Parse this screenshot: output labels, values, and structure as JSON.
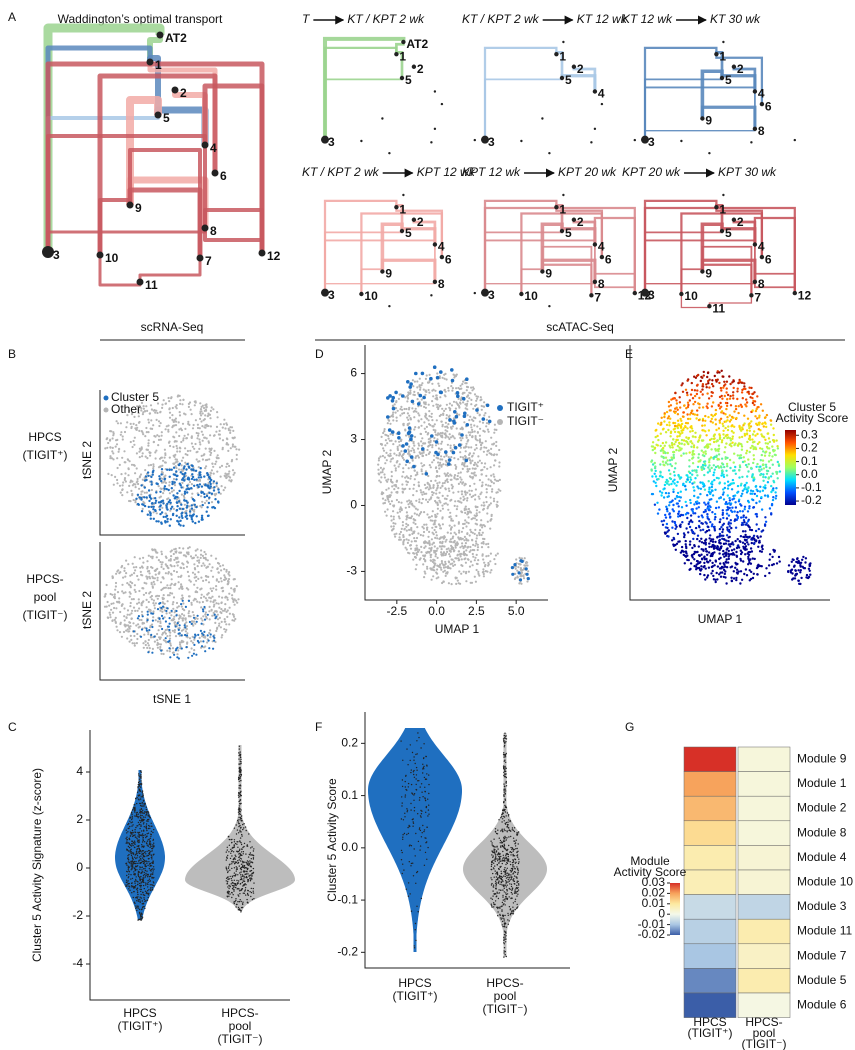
{
  "panels": {
    "sections": [
      "scRNA-Seq",
      "scATAC-Seq"
    ],
    "A": {
      "letter": "A",
      "title": "Waddington’s optimal transport",
      "nodes": [
        "AT2",
        "1",
        "2",
        "5",
        "4",
        "6",
        "9",
        "8",
        "3",
        "10",
        "7",
        "12",
        "11"
      ],
      "transitions": [
        {
          "from": "T",
          "to": "KT / KPT 2 wk",
          "nodes": [
            "AT2",
            "1",
            "2",
            "5",
            "3"
          ]
        },
        {
          "from": "KT / KPT 2 wk",
          "to": "KT 12 wk",
          "nodes": [
            "1",
            "2",
            "5",
            "4",
            "3"
          ]
        },
        {
          "from": "KT 12 wk",
          "to": "KT 30 wk",
          "nodes": [
            "1",
            "2",
            "5",
            "4",
            "6",
            "9",
            "8",
            "3"
          ]
        },
        {
          "from": "KT / KPT 2 wk",
          "to": "KPT 12 wk",
          "nodes": [
            "1",
            "2",
            "5",
            "4",
            "6",
            "9",
            "8",
            "3",
            "10"
          ]
        },
        {
          "from": "KPT 12 wk",
          "to": "KPT 20 wk",
          "nodes": [
            "1",
            "2",
            "5",
            "4",
            "6",
            "9",
            "8",
            "3",
            "10",
            "7",
            "12"
          ]
        },
        {
          "from": "KPT 20 wk",
          "to": "KPT 30 wk",
          "nodes": [
            "1",
            "2",
            "5",
            "4",
            "6",
            "9",
            "8",
            "3",
            "10",
            "11",
            "7",
            "12"
          ]
        }
      ]
    },
    "B": {
      "letter": "B",
      "legend": [
        "Cluster 5",
        "Other"
      ],
      "colors": [
        "#1f6fc0",
        "#b5b5b5"
      ],
      "rows": [
        {
          "label": [
            "HPCS",
            "(TIGIT⁺)"
          ],
          "ylabel": "tSNE 2"
        },
        {
          "label": [
            "HPCS-",
            "pool",
            "(TIGIT⁻)"
          ],
          "ylabel": "tSNE 2"
        }
      ],
      "xlabel": "tSNE 1"
    },
    "C": {
      "letter": "C",
      "ylabel": "Cluster 5 Activity Signature (z-score)",
      "ylim": [
        -5.5,
        5.5
      ],
      "yticks": [
        4,
        2,
        0,
        -2,
        -4
      ],
      "categories": [
        [
          "HPCS",
          "(TIGIT⁺)"
        ],
        [
          "HPCS-",
          "pool",
          "(TIGIT⁻)"
        ]
      ],
      "colors": [
        "#1f6fc0",
        "#bdbdbd"
      ]
    },
    "D": {
      "letter": "D",
      "xlabel": "UMAP 1",
      "ylabel": "UMAP 2",
      "xlim": [
        -4.5,
        7
      ],
      "xticks": [
        -2.5,
        {
          "value": 0,
          "label": "0.0"
        },
        2.5,
        {
          "value": 5,
          "label": "5.0"
        }
      ],
      "ylim": [
        -4.3,
        7.3
      ],
      "yticks": [
        6,
        3,
        0,
        -3
      ],
      "legend": [
        "TIGIT⁺",
        "TIGIT⁻"
      ],
      "colors": [
        "#1f6fc0",
        "#b5b5b5"
      ]
    },
    "E": {
      "letter": "E",
      "xlabel": "UMAP 1",
      "ylabel": "UMAP 2",
      "colorbar": {
        "title": [
          "Cluster 5",
          "Activity Score"
        ],
        "ticks": [
          0.3,
          0.2,
          0.1,
          {
            "value": 0,
            "label": "0.0"
          },
          -0.1,
          -0.2
        ],
        "lim": [
          -0.23,
          0.34
        ],
        "colors": [
          "#00008f",
          "#0050ff",
          "#00dfff",
          "#9fff60",
          "#ffdf00",
          "#ff5000",
          "#8f0000"
        ]
      }
    },
    "F": {
      "letter": "F",
      "ylabel": "Cluster 5 Activity Score",
      "ylim": [
        -0.23,
        0.26
      ],
      "yticks": [
        0.2,
        0.1,
        {
          "value": 0,
          "label": "0.0"
        },
        -0.1,
        -0.2
      ],
      "categories": [
        [
          "HPCS",
          "(TIGIT⁺)"
        ],
        [
          "HPCS-",
          "pool",
          "(TIGIT⁻)"
        ]
      ],
      "colors": [
        "#1f6fc0",
        "#bdbdbd"
      ]
    },
    "G": {
      "letter": "G",
      "rows": [
        "Module 9",
        "Module 1",
        "Module 2",
        "Module 8",
        "Module 4",
        "Module 10",
        "Module 3",
        "Module 11",
        "Module 7",
        "Module 5",
        "Module 6"
      ],
      "columns": [
        [
          "HPCS",
          "(TIGIT⁺)"
        ],
        [
          "HPCS-",
          "pool",
          "(TIGIT⁻)"
        ]
      ],
      "values": [
        [
          0.03,
          0.002
        ],
        [
          0.02,
          0.002
        ],
        [
          0.017,
          0.002
        ],
        [
          0.012,
          0.002
        ],
        [
          0.008,
          0.003
        ],
        [
          0.007,
          0.003
        ],
        [
          -0.006,
          -0.007
        ],
        [
          -0.008,
          0.008
        ],
        [
          -0.01,
          0.005
        ],
        [
          -0.016,
          0.008
        ],
        [
          -0.02,
          0.001
        ]
      ],
      "colorbar": {
        "title": [
          "Module",
          "Activity Score"
        ],
        "ticks": [
          0.03,
          0.02,
          0.01,
          0,
          -0.01,
          -0.02
        ],
        "colors": [
          "#3b5ea8",
          "#a9c6e3",
          "#f4f9ea",
          "#fde9a0",
          "#f7a35c",
          "#d73027"
        ]
      }
    }
  }
}
